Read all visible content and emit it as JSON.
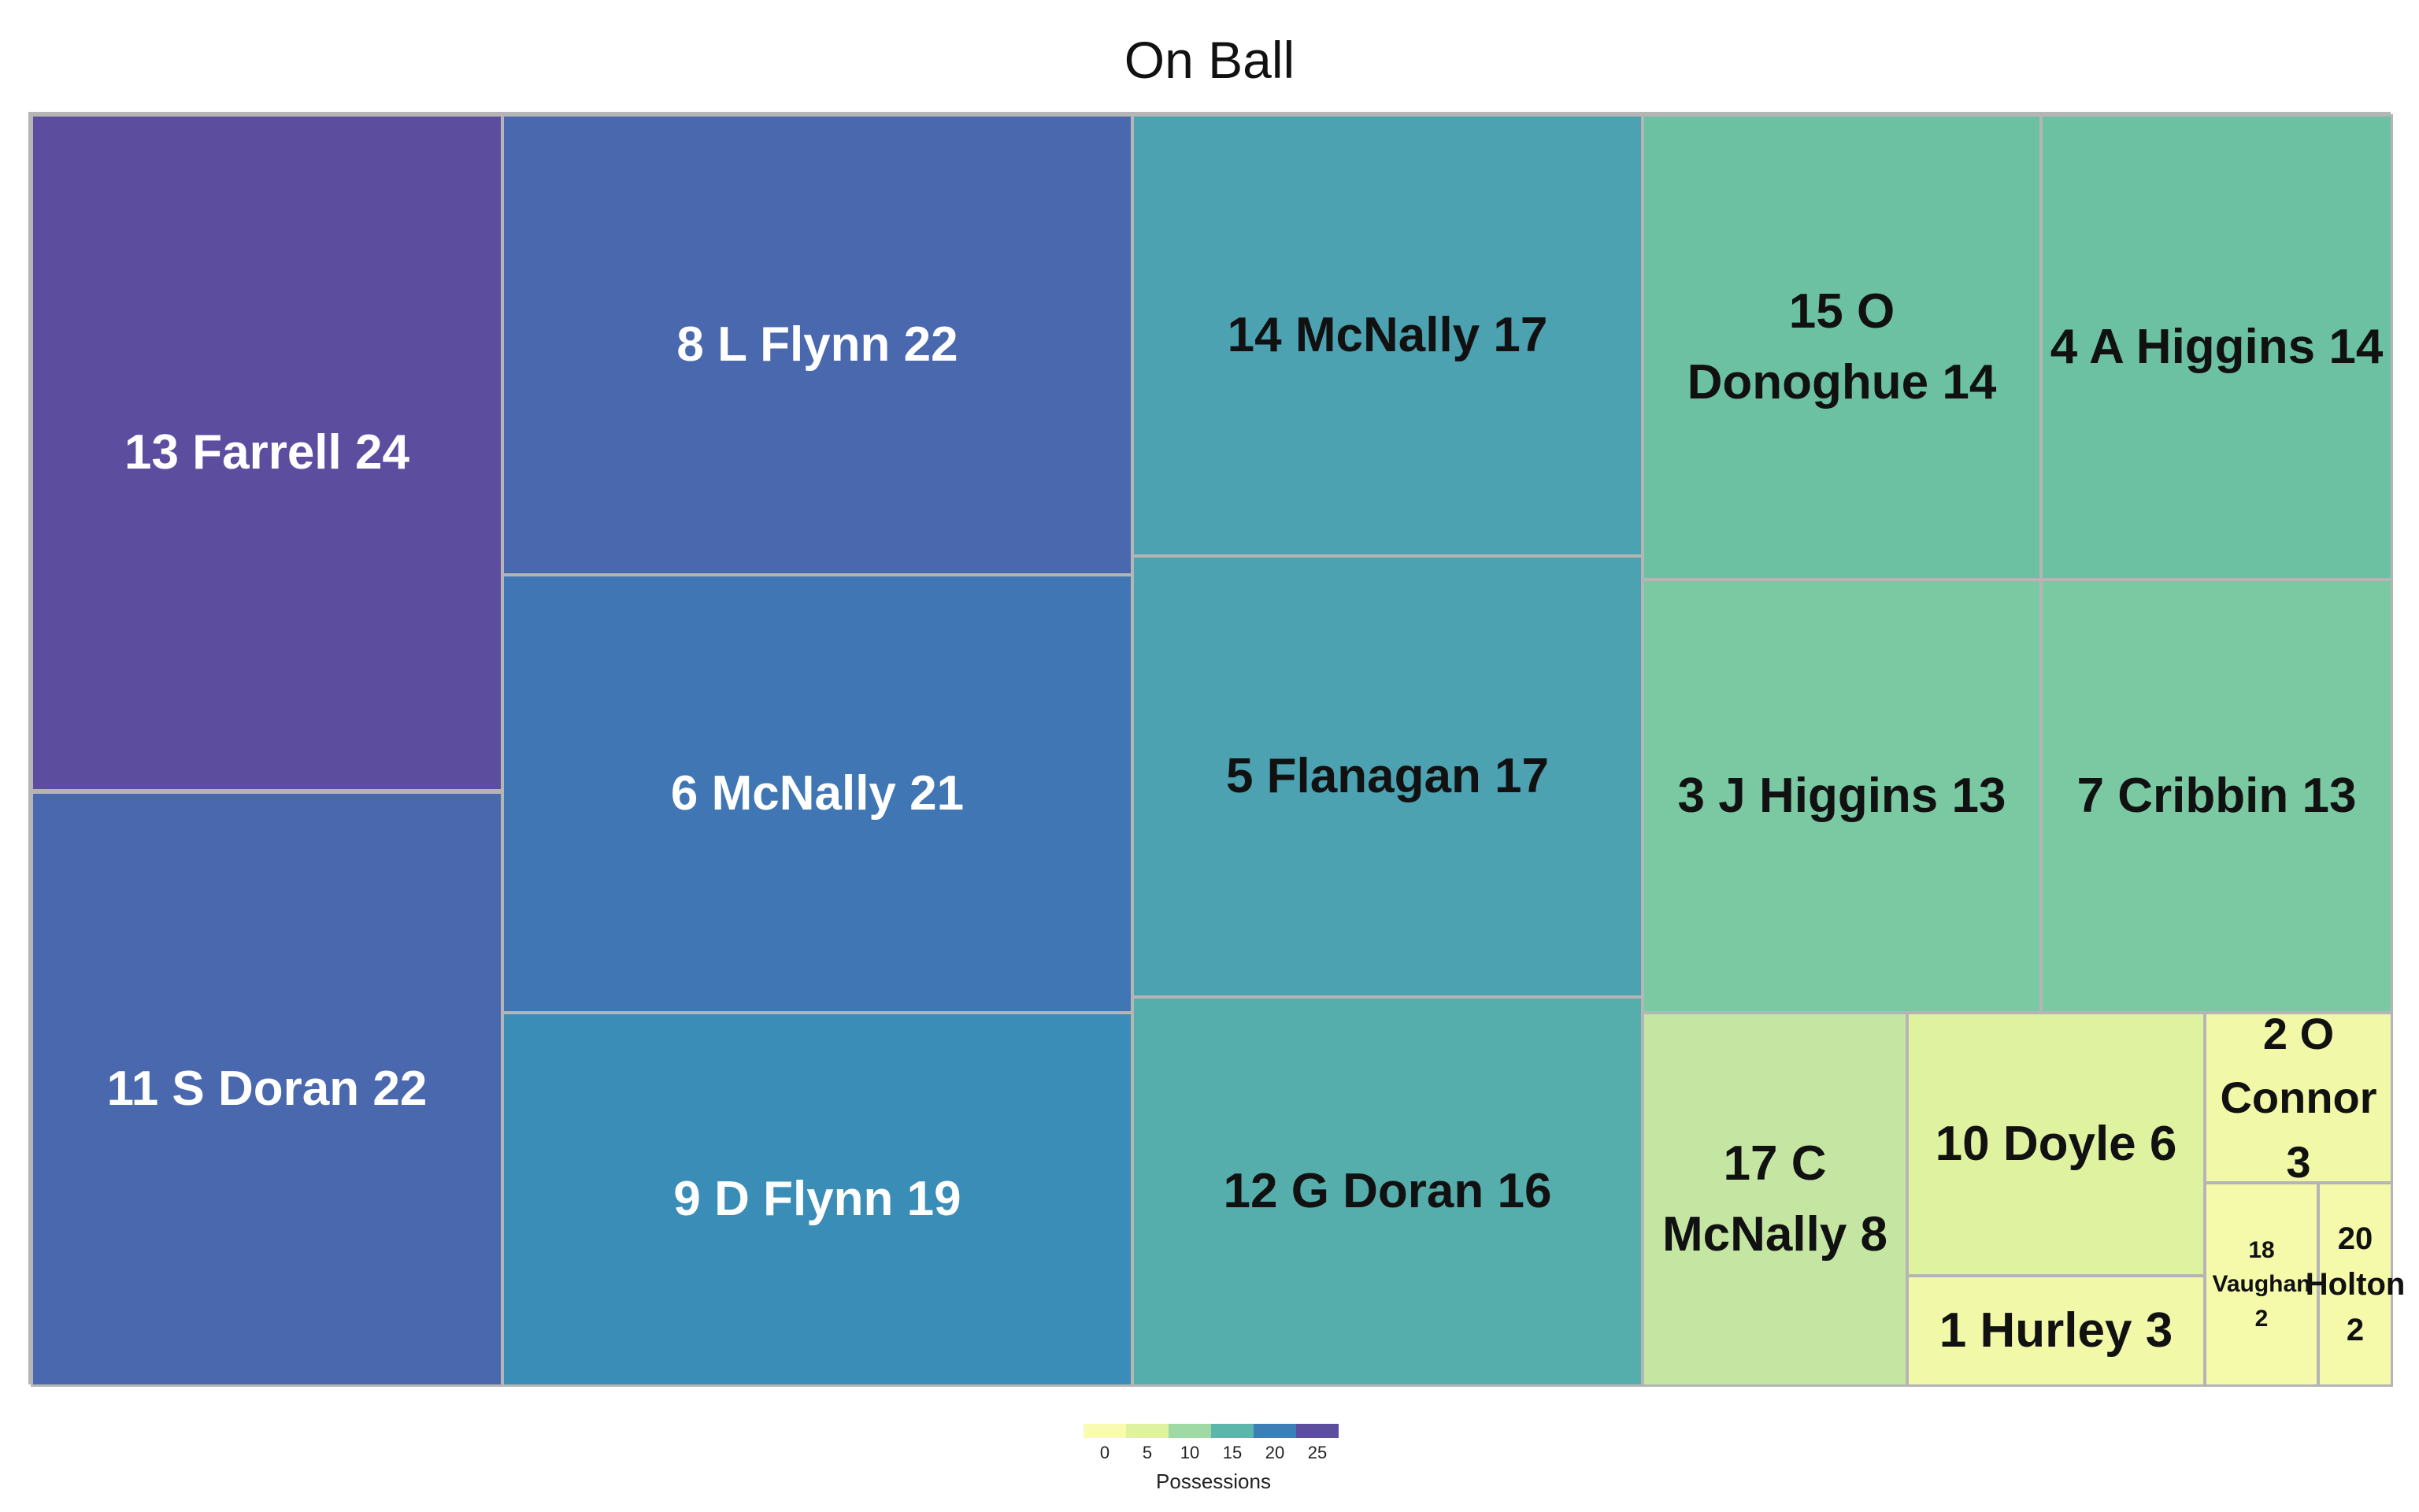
{
  "chart_data": {
    "type": "treemap",
    "title": "On Ball",
    "tiles": [
      {
        "label": "13 Farrell 24",
        "value": 24,
        "color": "#5d4d9f"
      },
      {
        "label": "11 S Doran 22",
        "value": 22,
        "color": "#4a68ae"
      },
      {
        "label": "8 L Flynn 22",
        "value": 22,
        "color": "#4a68ae"
      },
      {
        "label": "6 McNally 21",
        "value": 21,
        "color": "#3f76b3"
      },
      {
        "label": "9 D Flynn 19",
        "value": 19,
        "color": "#3a8db7"
      },
      {
        "label": "14 McNally 17",
        "value": 17,
        "color": "#4ca2b1"
      },
      {
        "label": "5 Flanagan 17",
        "value": 17,
        "color": "#4ca2b1"
      },
      {
        "label": "12 G Doran 16",
        "value": 16,
        "color": "#56aeac"
      },
      {
        "label": "15 O Donoghue 14",
        "value": 14,
        "color": "#6cc1a3"
      },
      {
        "label": "4 A Higgins 14",
        "value": 14,
        "color": "#6cc1a3"
      },
      {
        "label": "3 J Higgins 13",
        "value": 13,
        "color": "#7bc9a2"
      },
      {
        "label": "7 Cribbin 13",
        "value": 13,
        "color": "#7bc9a2"
      },
      {
        "label": "17 C McNally 8",
        "value": 8,
        "color": "#c5e6a2"
      },
      {
        "label": "10 Doyle 6",
        "value": 6,
        "color": "#def29f"
      },
      {
        "label": "1 Hurley 3",
        "value": 3,
        "color": "#f1f8a8"
      },
      {
        "label": "2 O Connor 3",
        "value": 3,
        "color": "#f1f8a8"
      },
      {
        "label": "18 Vaughan 2",
        "value": 2,
        "color": "#f5faab"
      },
      {
        "label": "20 Holton 2",
        "value": 2,
        "color": "#f5faab"
      }
    ],
    "legend": {
      "title": "Possessions",
      "ticks": [
        "0",
        "5",
        "10",
        "15",
        "20",
        "25"
      ],
      "colors": [
        "#f8fbb0",
        "#def29f",
        "#9fd9a3",
        "#5db6ab",
        "#3b7fb6",
        "#5d4d9f"
      ]
    }
  }
}
